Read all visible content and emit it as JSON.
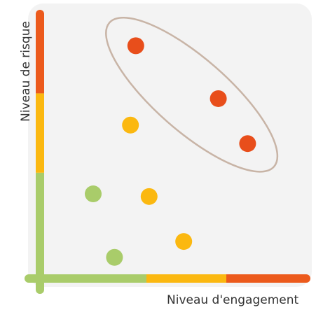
{
  "chart_data": {
    "type": "scatter",
    "title": "",
    "xlabel": "Niveau d'engagement",
    "ylabel": "Niveau de risque",
    "xlim": [
      0,
      10
    ],
    "ylim": [
      0,
      10
    ],
    "grid": false,
    "axis_bands": [
      {
        "from": 0,
        "to": 4,
        "color": "#a9cc6a"
      },
      {
        "from": 4,
        "to": 7,
        "color": "#fbb810"
      },
      {
        "from": 7,
        "to": 10,
        "color": "#ec5a1c"
      }
    ],
    "points": [
      {
        "x": 3.6,
        "y": 8.8,
        "color": "#e84e1b"
      },
      {
        "x": 6.7,
        "y": 6.8,
        "color": "#e84e1b"
      },
      {
        "x": 7.8,
        "y": 5.1,
        "color": "#e84e1b"
      },
      {
        "x": 3.4,
        "y": 5.8,
        "color": "#fbb810"
      },
      {
        "x": 4.1,
        "y": 3.1,
        "color": "#fbb810"
      },
      {
        "x": 5.4,
        "y": 1.4,
        "color": "#fbb810"
      },
      {
        "x": 2.0,
        "y": 3.2,
        "color": "#a9cc6a"
      },
      {
        "x": 2.8,
        "y": 0.8,
        "color": "#a9cc6a"
      }
    ],
    "highlight": {
      "points": [
        0,
        1,
        2
      ],
      "color": "#c8b4a6"
    }
  }
}
